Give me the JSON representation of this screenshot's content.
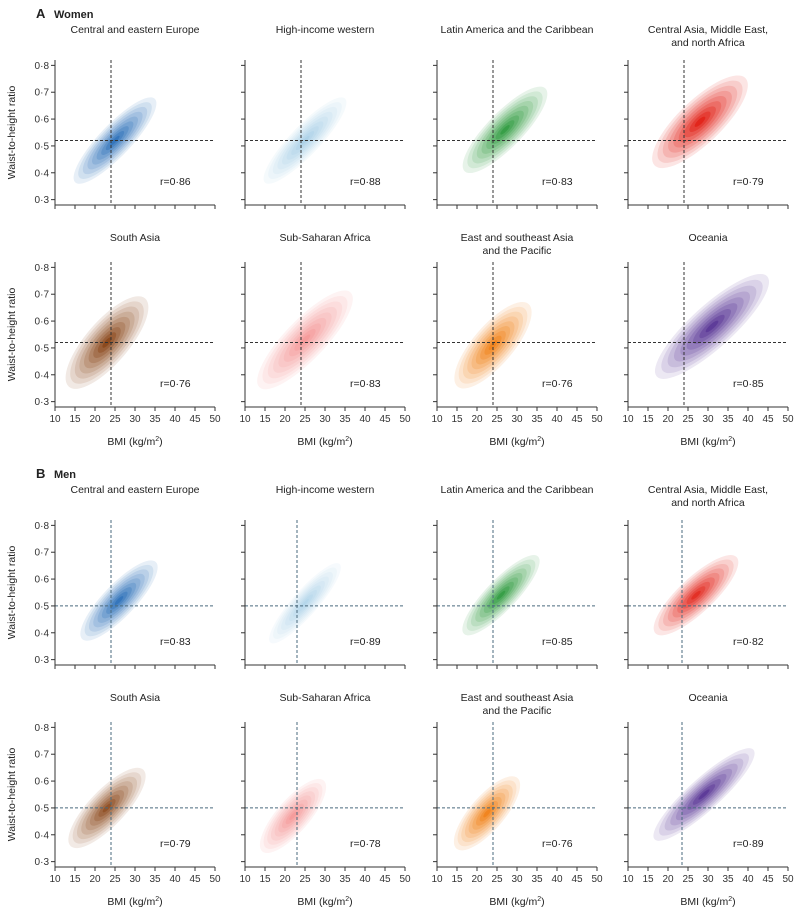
{
  "chart_data": {
    "type": "density",
    "xlabel_main": "BMI (kg/m",
    "xlabel_sup": "2",
    "xlabel_close": ")",
    "ylabel": "Waist-to-height ratio",
    "xlim": [
      10,
      50
    ],
    "ylim": [
      0.28,
      0.82
    ],
    "xticks": [
      10,
      15,
      20,
      25,
      30,
      35,
      40,
      45,
      50
    ],
    "yticks": [
      0.3,
      0.4,
      0.5,
      0.6,
      0.7,
      0.8
    ],
    "ytick_labels": [
      "0·3",
      "0·4",
      "0·5",
      "0·6",
      "0·7",
      "0·8"
    ],
    "sections": [
      {
        "letter": "A",
        "sex": "Women",
        "threshold_y": 0.52,
        "line_color": "#333333",
        "panels": [
          {
            "title": [
              "Central and eastern Europe"
            ],
            "r": "r=0·86",
            "threshold_x": 24,
            "color": "#2a6fb8",
            "cx": 25,
            "cy": 0.52,
            "sx": 4.5,
            "sy": 0.07,
            "rho": 0.86,
            "peak": 0.95
          },
          {
            "title": [
              "High-income western"
            ],
            "r": "r=0·88",
            "threshold_x": 24,
            "color": "#6baed6",
            "cx": 25,
            "cy": 0.52,
            "sx": 4.5,
            "sy": 0.07,
            "rho": 0.88,
            "peak": 0.55
          },
          {
            "title": [
              "Latin America and the Caribbean"
            ],
            "r": "r=0·83",
            "threshold_x": 24,
            "color": "#2e9a3e",
            "cx": 27,
            "cy": 0.56,
            "sx": 4.6,
            "sy": 0.07,
            "rho": 0.83,
            "peak": 0.95
          },
          {
            "title": [
              "Central Asia, Middle East,",
              "and north Africa"
            ],
            "r": "r=0·79",
            "threshold_x": 24,
            "color": "#e2261c",
            "cx": 28,
            "cy": 0.59,
            "sx": 5.2,
            "sy": 0.075,
            "rho": 0.79,
            "peak": 1.0
          },
          {
            "title": [
              "South Asia"
            ],
            "r": "r=0·76",
            "threshold_x": 24,
            "color": "#8c4a1e",
            "cx": 23,
            "cy": 0.52,
            "sx": 4.5,
            "sy": 0.075,
            "rho": 0.76,
            "peak": 1.0
          },
          {
            "title": [
              "Sub-Saharan Africa"
            ],
            "r": "r=0·83",
            "threshold_x": 24,
            "color": "#ee5a5a",
            "cx": 25,
            "cy": 0.53,
            "sx": 5.2,
            "sy": 0.08,
            "rho": 0.83,
            "peak": 0.6
          },
          {
            "title": [
              "East and southeast Asia",
              "and the Pacific"
            ],
            "r": "r=0·76",
            "threshold_x": 24,
            "color": "#f07f14",
            "cx": 24,
            "cy": 0.51,
            "sx": 4.2,
            "sy": 0.07,
            "rho": 0.76,
            "peak": 0.95
          },
          {
            "title": [
              "Oceania"
            ],
            "r": "r=0·85",
            "threshold_x": 24,
            "color": "#5e3c99",
            "cx": 31,
            "cy": 0.58,
            "sx": 6.2,
            "sy": 0.085,
            "rho": 0.85,
            "peak": 1.0
          }
        ]
      },
      {
        "letter": "B",
        "sex": "Men",
        "threshold_y": 0.5,
        "line_color": "#4a6a7d",
        "panels": [
          {
            "title": [
              "Central and eastern Europe"
            ],
            "r": "r=0·83",
            "threshold_x": 24,
            "color": "#2a6fb8",
            "cx": 26,
            "cy": 0.52,
            "sx": 4.2,
            "sy": 0.065,
            "rho": 0.83,
            "peak": 0.95
          },
          {
            "title": [
              "High-income western"
            ],
            "r": "r=0·89",
            "threshold_x": 23,
            "color": "#6baed6",
            "cx": 25,
            "cy": 0.51,
            "sx": 3.9,
            "sy": 0.065,
            "rho": 0.89,
            "peak": 0.5
          },
          {
            "title": [
              "Latin America and the Caribbean"
            ],
            "r": "r=0·85",
            "threshold_x": 24,
            "color": "#2e9a3e",
            "cx": 26,
            "cy": 0.54,
            "sx": 4.2,
            "sy": 0.065,
            "rho": 0.85,
            "peak": 0.95
          },
          {
            "title": [
              "Central Asia, Middle East,",
              "and north Africa"
            ],
            "r": "r=0·82",
            "threshold_x": 23.5,
            "color": "#e2261c",
            "cx": 27,
            "cy": 0.54,
            "sx": 4.6,
            "sy": 0.065,
            "rho": 0.82,
            "peak": 0.95
          },
          {
            "title": [
              "South Asia"
            ],
            "r": "r=0·79",
            "threshold_x": 24,
            "color": "#8c4a1e",
            "cx": 23,
            "cy": 0.5,
            "sx": 4.2,
            "sy": 0.065,
            "rho": 0.79,
            "peak": 0.95
          },
          {
            "title": [
              "Sub-Saharan Africa"
            ],
            "r": "r=0·78",
            "threshold_x": 23,
            "color": "#ee5a5a",
            "cx": 22,
            "cy": 0.47,
            "sx": 3.6,
            "sy": 0.06,
            "rho": 0.78,
            "peak": 0.6
          },
          {
            "title": [
              "East and southeast Asia",
              "and the Pacific"
            ],
            "r": "r=0·76",
            "threshold_x": 24,
            "color": "#f07f14",
            "cx": 22.5,
            "cy": 0.48,
            "sx": 3.6,
            "sy": 0.06,
            "rho": 0.76,
            "peak": 0.95
          },
          {
            "title": [
              "Oceania"
            ],
            "r": "r=0·89",
            "threshold_x": 23.5,
            "color": "#5e3c99",
            "cx": 29,
            "cy": 0.55,
            "sx": 5.5,
            "sy": 0.075,
            "rho": 0.89,
            "peak": 1.0
          }
        ]
      }
    ]
  }
}
